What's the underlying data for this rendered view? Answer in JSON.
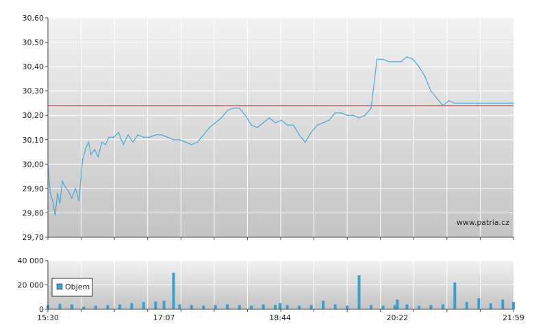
{
  "colors": {
    "line": "#4aa8d8",
    "bar": "#3aa0cf",
    "reference": "#cc2222",
    "grid": "#ffffff",
    "axis": "#444444",
    "panel_top": "#f2f2f2",
    "panel_bottom": "#c4c4c4"
  },
  "chart_data": [
    {
      "type": "line",
      "title": "",
      "xlabel": "",
      "ylabel": "",
      "y_tick_labels": [
        "30,60",
        "30,50",
        "30,40",
        "30,30",
        "30,20",
        "30,10",
        "30,00",
        "29,90",
        "29,80",
        "29,70"
      ],
      "ylim": [
        29.7,
        30.6
      ],
      "xlim": [
        "15:30",
        "21:59"
      ],
      "grid": true,
      "watermark": "www.patria.cz",
      "reference_line": 30.24,
      "series": [
        {
          "x": [
            "15:30",
            "15:32",
            "15:34",
            "15:36",
            "15:38",
            "15:40",
            "15:42",
            "15:44",
            "15:47",
            "15:50",
            "15:53",
            "15:56",
            "15:59",
            "16:02",
            "16:04",
            "16:06",
            "16:09",
            "16:12",
            "16:15",
            "16:18",
            "16:21",
            "16:25",
            "16:29",
            "16:33",
            "16:37",
            "16:41",
            "16:45",
            "16:50",
            "16:55",
            "17:00",
            "17:05",
            "17:10",
            "17:15",
            "17:20",
            "17:25",
            "17:30",
            "17:35",
            "17:40",
            "17:45",
            "17:50",
            "17:55",
            "18:00",
            "18:05",
            "18:10",
            "18:15",
            "18:20",
            "18:25",
            "18:30",
            "18:35",
            "18:40",
            "18:45",
            "18:50",
            "18:55",
            "19:00",
            "19:05",
            "19:10",
            "19:15",
            "19:20",
            "19:25",
            "19:30",
            "19:35",
            "19:40",
            "19:45",
            "19:50",
            "19:55",
            "20:00",
            "20:05",
            "20:10",
            "20:15",
            "20:20",
            "20:25",
            "20:30",
            "20:35",
            "20:40",
            "20:45",
            "20:50",
            "20:55",
            "21:00",
            "21:05",
            "21:10",
            "21:15",
            "21:20",
            "21:25",
            "21:30",
            "21:35",
            "21:40",
            "21:45",
            "21:50",
            "21:55",
            "21:59"
          ],
          "values": [
            30.0,
            29.88,
            29.85,
            29.79,
            29.88,
            29.84,
            29.93,
            29.91,
            29.89,
            29.86,
            29.9,
            29.85,
            30.02,
            30.07,
            30.09,
            30.04,
            30.06,
            30.03,
            30.09,
            30.08,
            30.11,
            30.11,
            30.13,
            30.08,
            30.12,
            30.09,
            30.12,
            30.11,
            30.11,
            30.12,
            30.12,
            30.11,
            30.1,
            30.1,
            30.09,
            30.08,
            30.09,
            30.12,
            30.15,
            30.17,
            30.19,
            30.22,
            30.23,
            30.23,
            30.2,
            30.16,
            30.15,
            30.17,
            30.19,
            30.17,
            30.18,
            30.16,
            30.16,
            30.12,
            30.09,
            30.13,
            30.16,
            30.17,
            30.18,
            30.21,
            30.21,
            30.2,
            30.2,
            30.19,
            30.2,
            30.23,
            30.43,
            30.43,
            30.42,
            30.42,
            30.42,
            30.44,
            30.43,
            30.4,
            30.36,
            30.3,
            30.27,
            30.24,
            30.26,
            30.25,
            30.25,
            30.25,
            30.25,
            30.25,
            30.25,
            30.25,
            30.25,
            30.25,
            30.25,
            30.25
          ]
        }
      ]
    },
    {
      "type": "bar",
      "title": "",
      "xlabel": "",
      "ylabel": "",
      "y_tick_labels": [
        "40 000",
        "20 000",
        "0"
      ],
      "ylim": [
        0,
        40000
      ],
      "x_tick_labels": [
        "15:30",
        "17:07",
        "18:44",
        "20:22",
        "21:59"
      ],
      "grid": true,
      "legend": {
        "placement": "bottom-left",
        "entries": [
          "Objem"
        ]
      },
      "series": [
        {
          "name": "Objem",
          "x": [
            "15:30",
            "15:40",
            "15:50",
            "16:00",
            "16:10",
            "16:20",
            "16:30",
            "16:40",
            "16:50",
            "17:00",
            "17:07",
            "17:15",
            "17:20",
            "17:30",
            "17:40",
            "17:50",
            "18:00",
            "18:10",
            "18:20",
            "18:30",
            "18:40",
            "18:44",
            "18:50",
            "19:00",
            "19:10",
            "19:20",
            "19:30",
            "19:40",
            "19:50",
            "20:00",
            "20:10",
            "20:20",
            "20:22",
            "20:30",
            "20:40",
            "20:50",
            "21:00",
            "21:10",
            "21:20",
            "21:30",
            "21:40",
            "21:50",
            "21:59"
          ],
          "values": [
            3500,
            4500,
            4000,
            2000,
            3000,
            3500,
            4000,
            5000,
            6000,
            6500,
            7000,
            30000,
            4000,
            3500,
            3000,
            3500,
            4000,
            3500,
            3000,
            4000,
            3500,
            5000,
            3500,
            3000,
            3500,
            7000,
            4000,
            3000,
            28000,
            3500,
            3000,
            3500,
            8000,
            4000,
            3000,
            3500,
            4000,
            22000,
            6000,
            9000,
            5000,
            8000,
            6000
          ]
        }
      ]
    }
  ]
}
